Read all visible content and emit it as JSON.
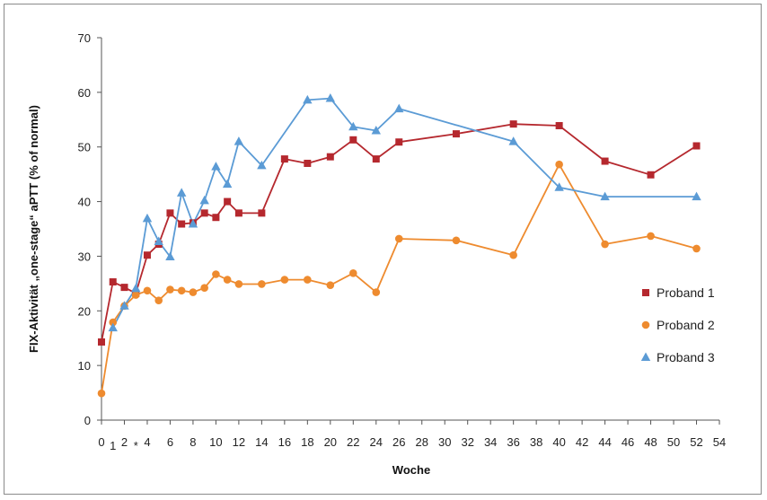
{
  "chart_data": {
    "type": "line",
    "title": "",
    "xlabel": "Woche",
    "ylabel": "FIX-Aktivität „one-stage“ aPTT (% of normal)",
    "xlim": [
      0,
      54
    ],
    "ylim": [
      0,
      70
    ],
    "x_ticks": [
      0,
      2,
      4,
      6,
      8,
      10,
      12,
      14,
      16,
      18,
      20,
      22,
      24,
      26,
      28,
      30,
      32,
      34,
      36,
      38,
      40,
      42,
      44,
      46,
      48,
      50,
      52,
      54
    ],
    "x_tick_labels": [
      "0",
      "2",
      "4",
      "6",
      "8",
      "10",
      "12",
      "14",
      "16",
      "18",
      "20",
      "22",
      "24",
      "26",
      "28",
      "30",
      "32",
      "34",
      "36",
      "38",
      "40",
      "42",
      "44",
      "46",
      "48",
      "50",
      "52",
      "54"
    ],
    "y_ticks": [
      0,
      10,
      20,
      30,
      40,
      50,
      60,
      70
    ],
    "annotations": [
      {
        "text": "1",
        "x": 1
      },
      {
        "text": "*",
        "x": 3
      }
    ],
    "grid": false,
    "legend_position": "right",
    "series": [
      {
        "name": "Proband 1",
        "color": "#b5282e",
        "marker": "square",
        "points": [
          [
            0,
            14.3
          ],
          [
            1,
            25.3
          ],
          [
            2,
            24.3
          ],
          [
            3,
            23.2
          ],
          [
            4,
            30.2
          ],
          [
            5,
            32.2
          ],
          [
            6,
            37.9
          ],
          [
            7,
            35.9
          ],
          [
            8,
            36.1
          ],
          [
            9,
            37.9
          ],
          [
            10,
            37.1
          ],
          [
            11,
            40.0
          ],
          [
            12,
            37.9
          ],
          [
            14,
            37.9
          ],
          [
            16,
            47.8
          ],
          [
            18,
            47.0
          ],
          [
            20,
            48.2
          ],
          [
            22,
            51.3
          ],
          [
            24,
            47.8
          ],
          [
            26,
            50.9
          ],
          [
            31,
            52.4
          ],
          [
            36,
            54.2
          ],
          [
            40,
            53.9
          ],
          [
            44,
            47.4
          ],
          [
            48,
            44.9
          ],
          [
            52,
            50.2
          ]
        ]
      },
      {
        "name": "Proband 2",
        "color": "#ee8b2f",
        "marker": "circle",
        "points": [
          [
            0,
            4.9
          ],
          [
            1,
            17.9
          ],
          [
            2,
            20.9
          ],
          [
            3,
            22.9
          ],
          [
            4,
            23.7
          ],
          [
            5,
            21.9
          ],
          [
            6,
            23.9
          ],
          [
            7,
            23.7
          ],
          [
            8,
            23.4
          ],
          [
            9,
            24.2
          ],
          [
            10,
            26.7
          ],
          [
            11,
            25.7
          ],
          [
            12,
            24.9
          ],
          [
            14,
            24.9
          ],
          [
            16,
            25.7
          ],
          [
            18,
            25.7
          ],
          [
            20,
            24.7
          ],
          [
            22,
            26.9
          ],
          [
            24,
            23.4
          ],
          [
            26,
            33.2
          ],
          [
            31,
            32.9
          ],
          [
            36,
            30.2
          ],
          [
            40,
            46.8
          ],
          [
            44,
            32.2
          ],
          [
            48,
            33.7
          ],
          [
            52,
            31.4
          ]
        ]
      },
      {
        "name": "Proband 3",
        "color": "#5b9bd5",
        "marker": "triangle",
        "points": [
          [
            1,
            16.9
          ],
          [
            2,
            20.9
          ],
          [
            3,
            24.1
          ],
          [
            4,
            36.9
          ],
          [
            5,
            32.7
          ],
          [
            6,
            29.9
          ],
          [
            7,
            41.6
          ],
          [
            8,
            35.9
          ],
          [
            9,
            40.2
          ],
          [
            10,
            46.4
          ],
          [
            11,
            43.2
          ],
          [
            12,
            51.0
          ],
          [
            14,
            46.6
          ],
          [
            18,
            58.6
          ],
          [
            20,
            58.9
          ],
          [
            22,
            53.7
          ],
          [
            24,
            53.0
          ],
          [
            26,
            57.0
          ],
          [
            36,
            51.0
          ],
          [
            40,
            42.6
          ],
          [
            44,
            40.9
          ],
          [
            52,
            40.9
          ]
        ]
      }
    ]
  }
}
